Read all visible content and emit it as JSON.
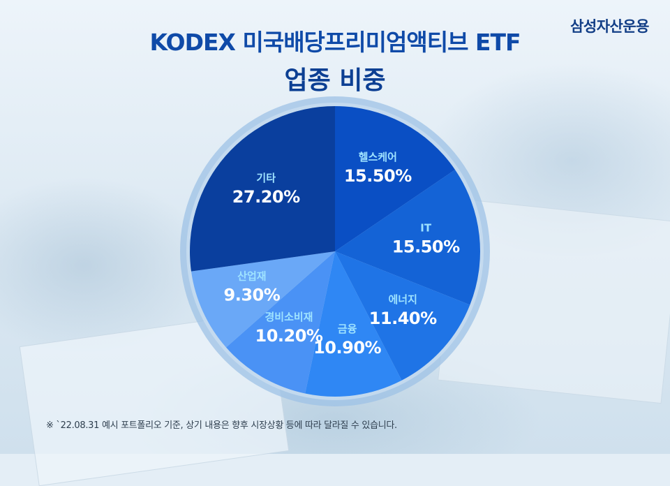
{
  "brand": "삼성자산운용",
  "title_line1": "KODEX 미국배당프리미엄액티브 ETF",
  "title_line2": "업종 비중",
  "footnote": "※ `22.08.31 예시 포트폴리오 기준, 상기 내용은 향후 시장상황 등에 따라 달라질 수 있습니다.",
  "chart_data": {
    "type": "pie",
    "categories": [
      "헬스케어",
      "IT",
      "에너지",
      "금융",
      "경비소비재",
      "산업재",
      "기타"
    ],
    "values": [
      15.5,
      15.5,
      11.4,
      10.9,
      10.2,
      9.3,
      27.2
    ],
    "value_labels": [
      "15.50%",
      "15.50%",
      "11.40%",
      "10.90%",
      "10.20%",
      "9.30%",
      "27.20%"
    ],
    "colors": [
      "#0a4fc4",
      "#1463d6",
      "#1f74e6",
      "#2f87f4",
      "#4a92f5",
      "#6aa8f7",
      "#0a3f9e"
    ],
    "start": "12 o'clock, clockwise",
    "legend": "none"
  }
}
